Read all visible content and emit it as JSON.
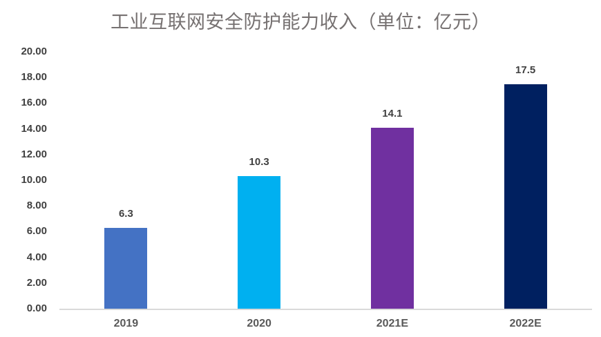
{
  "chart_data": {
    "type": "bar",
    "title": "工业互联网安全防护能力收入（单位：亿元）",
    "categories": [
      "2019",
      "2020",
      "2021E",
      "2022E"
    ],
    "values": [
      6.3,
      10.3,
      14.1,
      17.5
    ],
    "data_labels": [
      "6.3",
      "10.3",
      "14.1",
      "17.5"
    ],
    "bar_colors": [
      "#4472C4",
      "#00B0F0",
      "#7030A0",
      "#002060"
    ],
    "xlabel": "",
    "ylabel": "",
    "ylim": [
      0,
      20
    ],
    "ytick_values": [
      0,
      2,
      4,
      6,
      8,
      10,
      12,
      14,
      16,
      18,
      20
    ],
    "ytick_labels": [
      "0.00",
      "2.00",
      "4.00",
      "6.00",
      "8.00",
      "10.00",
      "12.00",
      "14.00",
      "16.00",
      "18.00",
      "20.00"
    ],
    "grid": false,
    "legend": false,
    "title_color": "#767171",
    "tick_label_color": "#404040",
    "category_label_color": "#595959",
    "axis_line_color": "#D9D9D9"
  }
}
